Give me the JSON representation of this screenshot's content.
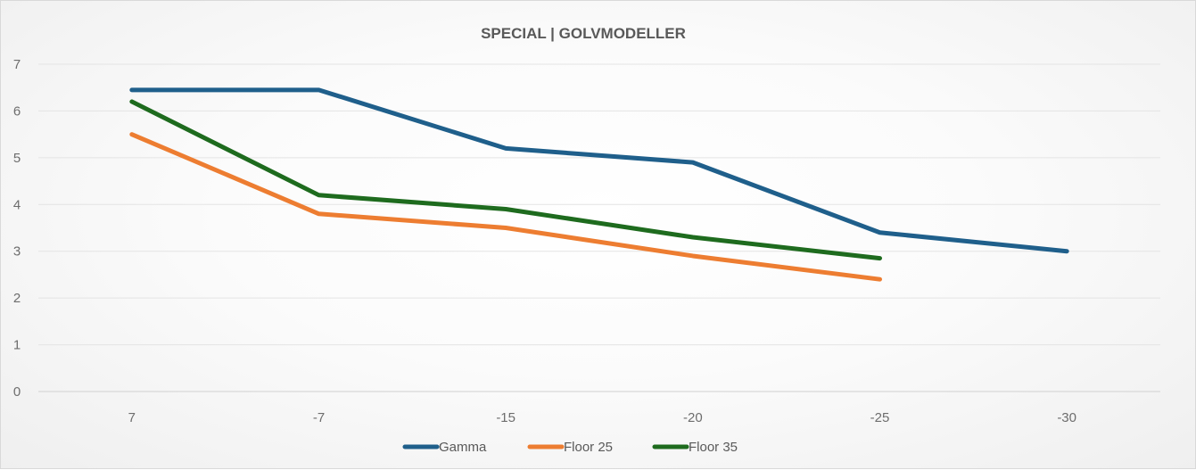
{
  "chart_data": {
    "type": "line",
    "title": "SPECIAL | GOLVMODELLER",
    "categories": [
      "7",
      "-7",
      "-15",
      "-20",
      "-25",
      "-30"
    ],
    "ylim": [
      0,
      7
    ],
    "yticks": [
      0,
      1,
      2,
      3,
      4,
      5,
      6,
      7
    ],
    "grid": true,
    "legend_position": "bottom",
    "series": [
      {
        "name": "Gamma",
        "color": "#1f5f8b",
        "values": [
          6.45,
          6.45,
          5.2,
          4.9,
          3.4,
          3.0
        ]
      },
      {
        "name": "Floor 25",
        "color": "#ed7d31",
        "values": [
          5.5,
          3.8,
          3.5,
          2.9,
          2.4,
          null
        ]
      },
      {
        "name": "Floor 35",
        "color": "#1e6b1e",
        "values": [
          6.2,
          4.2,
          3.9,
          3.3,
          2.85,
          null
        ]
      }
    ]
  }
}
